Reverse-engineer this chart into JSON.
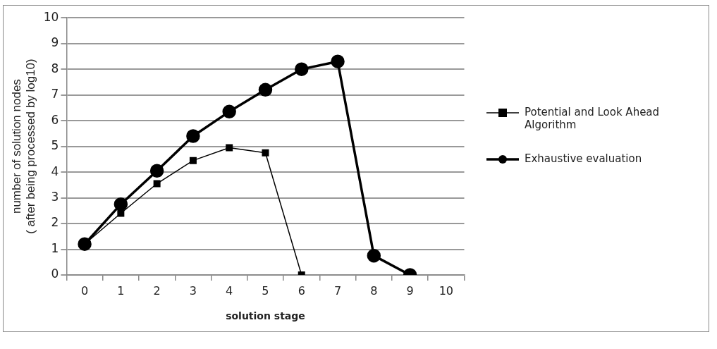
{
  "chart_data": {
    "type": "line",
    "xlabel": "solution stage",
    "ylabel": "number of solution nodes\n( after being processed by log10)",
    "categories": [
      "0",
      "1",
      "2",
      "3",
      "4",
      "5",
      "6",
      "7",
      "8",
      "9",
      "10"
    ],
    "series": [
      {
        "name": "Potential and Look Ahead Algorithm",
        "color": "#000000",
        "marker": "square",
        "values": [
          1.2,
          2.4,
          3.55,
          4.45,
          4.95,
          4.75,
          0,
          null,
          null,
          null,
          null
        ]
      },
      {
        "name": "Exhaustive evaluation",
        "color": "#000000",
        "marker": "circle",
        "values": [
          1.2,
          2.75,
          4.05,
          5.4,
          6.35,
          7.2,
          8.0,
          8.3,
          0.75,
          0,
          null
        ]
      }
    ],
    "ylim": [
      0,
      10
    ],
    "yticks": [
      0,
      1,
      2,
      3,
      4,
      5,
      6,
      7,
      8,
      9,
      10
    ],
    "grid": "y",
    "legend": "right"
  }
}
